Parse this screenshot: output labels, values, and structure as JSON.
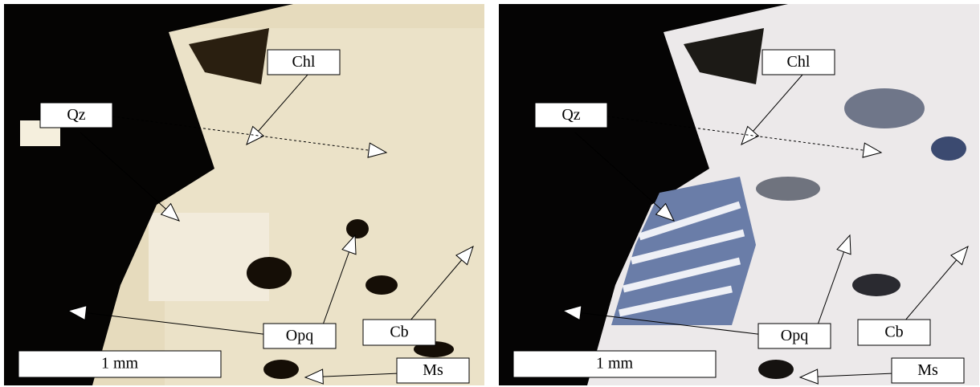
{
  "panels": [
    {
      "labels": [
        "Chl",
        "Qz",
        "Opq",
        "Cb",
        "Ms"
      ],
      "scale_bar": "1 mm"
    },
    {
      "labels": [
        "Chl",
        "Qz",
        "Opq",
        "Cb",
        "Ms"
      ],
      "scale_bar": "1 mm"
    }
  ]
}
